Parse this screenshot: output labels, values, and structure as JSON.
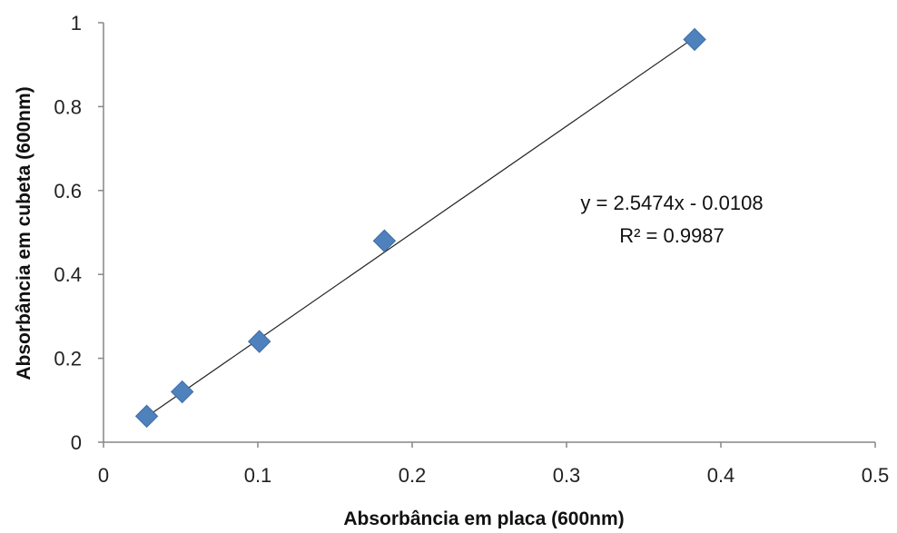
{
  "chart_data": {
    "type": "scatter",
    "xlabel": "Absorbância em placa (600nm)",
    "ylabel": "Absorbância em cubeta (600nm)",
    "xlim": [
      0,
      0.5
    ],
    "ylim": [
      0,
      1
    ],
    "x_ticks": [
      0,
      0.1,
      0.2,
      0.3,
      0.4,
      0.5
    ],
    "y_ticks": [
      0,
      0.2,
      0.4,
      0.6,
      0.8,
      1
    ],
    "x_tick_labels": [
      "0",
      "0.1",
      "0.2",
      "0.3",
      "0.4",
      "0.5"
    ],
    "y_tick_labels": [
      "0",
      "0.2",
      "0.4",
      "0.6",
      "0.8",
      "1"
    ],
    "grid": false,
    "legend": "none",
    "marker": "diamond",
    "series": [
      {
        "x": [
          0.028,
          0.051,
          0.101,
          0.182,
          0.383
        ],
        "y": [
          0.062,
          0.12,
          0.24,
          0.48,
          0.96
        ],
        "color": "#4F81BD"
      }
    ],
    "trendline": {
      "type": "linear",
      "slope": 2.5474,
      "intercept": -0.0108,
      "x_range": [
        0.028,
        0.383
      ],
      "color": "#222222"
    },
    "annotations": {
      "equation": "y = 2.5474x - 0.0108",
      "r_squared": "R² = 0.9987"
    }
  }
}
